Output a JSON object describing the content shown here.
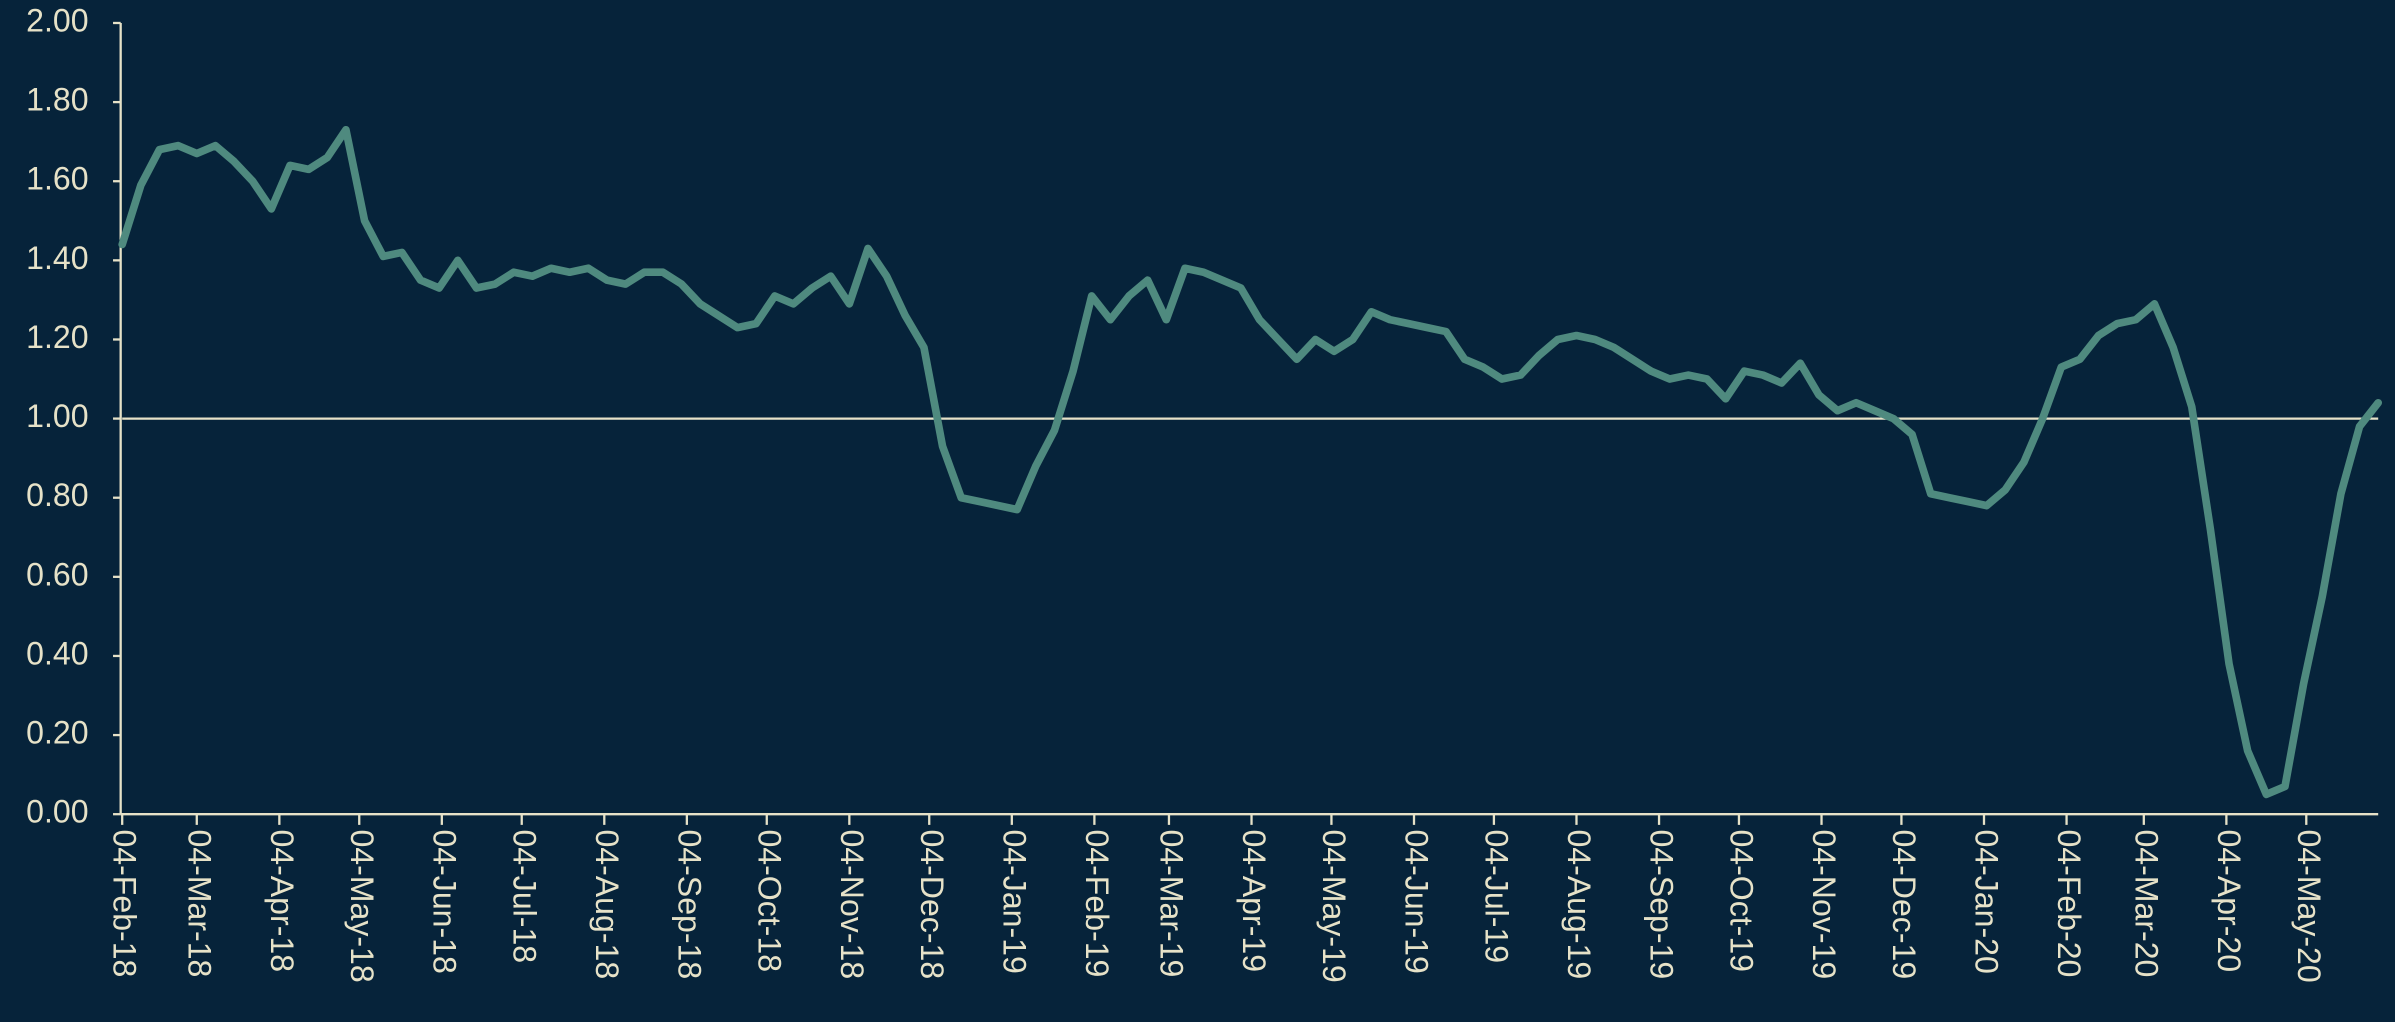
{
  "chart_data": {
    "type": "line",
    "x": [
      "2018-02-04",
      "2018-02-11",
      "2018-02-18",
      "2018-02-25",
      "2018-03-04",
      "2018-03-11",
      "2018-03-18",
      "2018-03-25",
      "2018-04-01",
      "2018-04-08",
      "2018-04-15",
      "2018-04-22",
      "2018-04-29",
      "2018-05-06",
      "2018-05-13",
      "2018-05-20",
      "2018-05-27",
      "2018-06-03",
      "2018-06-10",
      "2018-06-17",
      "2018-06-24",
      "2018-07-01",
      "2018-07-08",
      "2018-07-15",
      "2018-07-22",
      "2018-07-29",
      "2018-08-05",
      "2018-08-12",
      "2018-08-19",
      "2018-08-26",
      "2018-09-02",
      "2018-09-09",
      "2018-09-16",
      "2018-09-23",
      "2018-09-30",
      "2018-10-07",
      "2018-10-14",
      "2018-10-21",
      "2018-10-28",
      "2018-11-04",
      "2018-11-11",
      "2018-11-18",
      "2018-11-25",
      "2018-12-02",
      "2018-12-09",
      "2018-12-16",
      "2018-12-23",
      "2018-12-30",
      "2019-01-06",
      "2019-01-13",
      "2019-01-20",
      "2019-01-27",
      "2019-02-03",
      "2019-02-10",
      "2019-02-17",
      "2019-02-24",
      "2019-03-03",
      "2019-03-10",
      "2019-03-17",
      "2019-03-24",
      "2019-03-31",
      "2019-04-07",
      "2019-04-14",
      "2019-04-21",
      "2019-04-28",
      "2019-05-05",
      "2019-05-12",
      "2019-05-19",
      "2019-05-26",
      "2019-06-02",
      "2019-06-09",
      "2019-06-16",
      "2019-06-23",
      "2019-06-30",
      "2019-07-07",
      "2019-07-14",
      "2019-07-21",
      "2019-07-28",
      "2019-08-04",
      "2019-08-11",
      "2019-08-18",
      "2019-08-25",
      "2019-09-01",
      "2019-09-08",
      "2019-09-15",
      "2019-09-22",
      "2019-09-29",
      "2019-10-06",
      "2019-10-13",
      "2019-10-20",
      "2019-10-27",
      "2019-11-03",
      "2019-11-10",
      "2019-11-17",
      "2019-11-24",
      "2019-12-01",
      "2019-12-08",
      "2019-12-15",
      "2019-12-22",
      "2019-12-29",
      "2020-01-05",
      "2020-01-12",
      "2020-01-19",
      "2020-01-26",
      "2020-02-02",
      "2020-02-09",
      "2020-02-16",
      "2020-02-23",
      "2020-03-01",
      "2020-03-08",
      "2020-03-15",
      "2020-03-22",
      "2020-03-29",
      "2020-04-05",
      "2020-04-12",
      "2020-04-19",
      "2020-04-26",
      "2020-05-03",
      "2020-05-10",
      "2020-05-17",
      "2020-05-24",
      "2020-05-31"
    ],
    "series": [
      {
        "color": "#4f8a7f",
        "values": [
          1.44,
          1.59,
          1.68,
          1.69,
          1.67,
          1.69,
          1.65,
          1.6,
          1.53,
          1.64,
          1.63,
          1.66,
          1.73,
          1.5,
          1.41,
          1.42,
          1.35,
          1.33,
          1.4,
          1.33,
          1.34,
          1.37,
          1.36,
          1.38,
          1.37,
          1.38,
          1.35,
          1.34,
          1.37,
          1.37,
          1.34,
          1.29,
          1.26,
          1.23,
          1.24,
          1.31,
          1.29,
          1.33,
          1.36,
          1.29,
          1.43,
          1.36,
          1.26,
          1.18,
          0.93,
          0.8,
          0.79,
          0.78,
          0.77,
          0.88,
          0.97,
          1.12,
          1.31,
          1.25,
          1.31,
          1.35,
          1.25,
          1.38,
          1.37,
          1.35,
          1.33,
          1.25,
          1.2,
          1.15,
          1.2,
          1.17,
          1.2,
          1.27,
          1.25,
          1.24,
          1.23,
          1.22,
          1.15,
          1.13,
          1.1,
          1.11,
          1.16,
          1.2,
          1.21,
          1.2,
          1.18,
          1.15,
          1.12,
          1.1,
          1.11,
          1.1,
          1.05,
          1.12,
          1.11,
          1.09,
          1.14,
          1.06,
          1.02,
          1.04,
          1.02,
          1.0,
          0.96,
          0.81,
          0.8,
          0.79,
          0.78,
          0.82,
          0.89,
          1.0,
          1.13,
          1.15,
          1.21,
          1.24,
          1.25,
          1.29,
          1.18,
          1.03,
          0.72,
          0.38,
          0.16,
          0.05,
          0.07,
          0.33,
          0.55,
          0.81,
          0.98,
          1.04
        ]
      }
    ],
    "xlim": [
      "2018-02-04",
      "2020-05-31"
    ],
    "xticks": [
      {
        "value": "2018-02-04",
        "label": "04-Feb-18"
      },
      {
        "value": "2018-03-04",
        "label": "04-Mar-18"
      },
      {
        "value": "2018-04-04",
        "label": "04-Apr-18"
      },
      {
        "value": "2018-05-04",
        "label": "04-May-18"
      },
      {
        "value": "2018-06-04",
        "label": "04-Jun-18"
      },
      {
        "value": "2018-07-04",
        "label": "04-Jul-18"
      },
      {
        "value": "2018-08-04",
        "label": "04-Aug-18"
      },
      {
        "value": "2018-09-04",
        "label": "04-Sep-18"
      },
      {
        "value": "2018-10-04",
        "label": "04-Oct-18"
      },
      {
        "value": "2018-11-04",
        "label": "04-Nov-18"
      },
      {
        "value": "2018-12-04",
        "label": "04-Dec-18"
      },
      {
        "value": "2019-01-04",
        "label": "04-Jan-19"
      },
      {
        "value": "2019-02-04",
        "label": "04-Feb-19"
      },
      {
        "value": "2019-03-04",
        "label": "04-Mar-19"
      },
      {
        "value": "2019-04-04",
        "label": "04-Apr-19"
      },
      {
        "value": "2019-05-04",
        "label": "04-May-19"
      },
      {
        "value": "2019-06-04",
        "label": "04-Jun-19"
      },
      {
        "value": "2019-07-04",
        "label": "04-Jul-19"
      },
      {
        "value": "2019-08-04",
        "label": "04-Aug-19"
      },
      {
        "value": "2019-09-04",
        "label": "04-Sep-19"
      },
      {
        "value": "2019-10-04",
        "label": "04-Oct-19"
      },
      {
        "value": "2019-11-04",
        "label": "04-Nov-19"
      },
      {
        "value": "2019-12-04",
        "label": "04-Dec-19"
      },
      {
        "value": "2020-01-04",
        "label": "04-Jan-20"
      },
      {
        "value": "2020-02-04",
        "label": "04-Feb-20"
      },
      {
        "value": "2020-03-04",
        "label": "04-Mar-20"
      },
      {
        "value": "2020-04-04",
        "label": "04-Apr-20"
      },
      {
        "value": "2020-05-04",
        "label": "04-May-20"
      }
    ],
    "ylim": [
      0,
      2
    ],
    "yticks": [
      {
        "value": 0,
        "label": "0.00"
      },
      {
        "value": 0.2,
        "label": "0.20"
      },
      {
        "value": 0.4,
        "label": "0.40"
      },
      {
        "value": 0.6,
        "label": "0.60"
      },
      {
        "value": 0.8,
        "label": "0.80"
      },
      {
        "value": 1,
        "label": "1.00"
      },
      {
        "value": 1.2,
        "label": "1.20"
      },
      {
        "value": 1.4,
        "label": "1.40"
      },
      {
        "value": 1.6,
        "label": "1.60"
      },
      {
        "value": 1.8,
        "label": "1.80"
      },
      {
        "value": 2,
        "label": "2.00"
      }
    ],
    "hline": 1,
    "axis_color": "#e6e2c8",
    "grid": false
  }
}
